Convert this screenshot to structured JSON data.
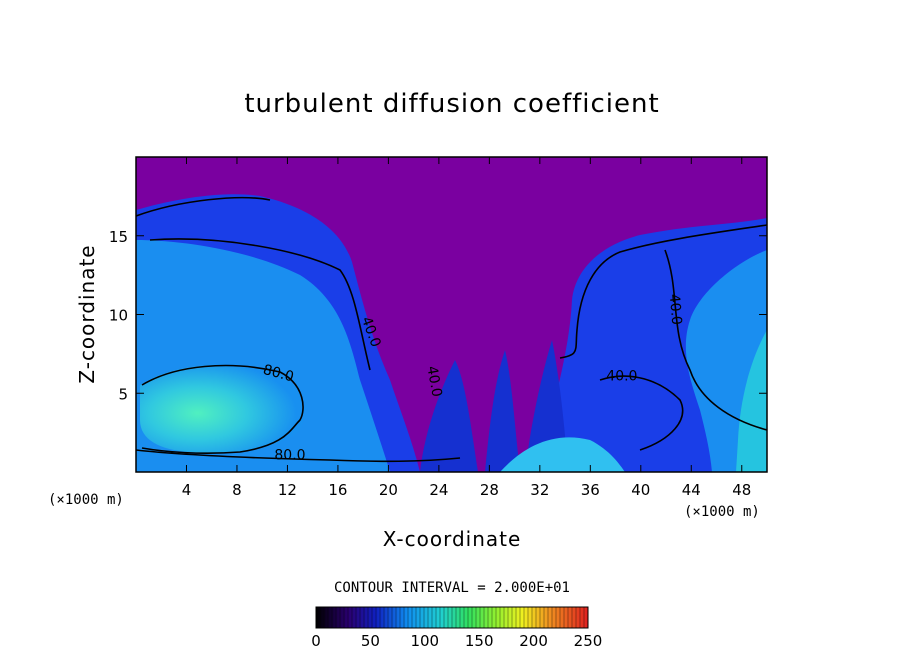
{
  "chart_data": {
    "type": "heatmap",
    "title": "turbulent diffusion coefficient",
    "xlabel": "X-coordinate",
    "ylabel": "Z-coordinate",
    "x_unit": "(×1000 m)",
    "x_unit_right": "(×1000 m)",
    "xlim": [
      0,
      50
    ],
    "ylim": [
      0,
      20
    ],
    "x_ticks": [
      4,
      8,
      12,
      16,
      20,
      24,
      28,
      32,
      36,
      40,
      44,
      48
    ],
    "y_ticks": [
      5,
      10,
      15
    ],
    "contour_interval_text": "CONTOUR INTERVAL = 2.000E+01",
    "contour_labels": [
      {
        "text": "40.0",
        "x": 18.3,
        "z": 8.8,
        "angle": 70
      },
      {
        "text": "80.0",
        "x": 11.2,
        "z": 6.0,
        "angle": 15
      },
      {
        "text": "40.0",
        "x": 23.3,
        "z": 5.7,
        "angle": 80
      },
      {
        "text": "80.0",
        "x": 12.2,
        "z": 0.8,
        "angle": 0
      },
      {
        "text": "40.0",
        "x": 42.4,
        "z": 10.3,
        "angle": 85
      },
      {
        "text": "40.0",
        "x": 38.5,
        "z": 5.8,
        "angle": 0
      }
    ],
    "colorbar": {
      "ticks": [
        0,
        50,
        100,
        150,
        200,
        250
      ],
      "range": [
        0,
        250
      ]
    },
    "colors": {
      "background_purple": "#7a00a0",
      "low": "#1e0a9a",
      "mid": "#1aa0f0",
      "high": "#3fe0b0"
    }
  }
}
